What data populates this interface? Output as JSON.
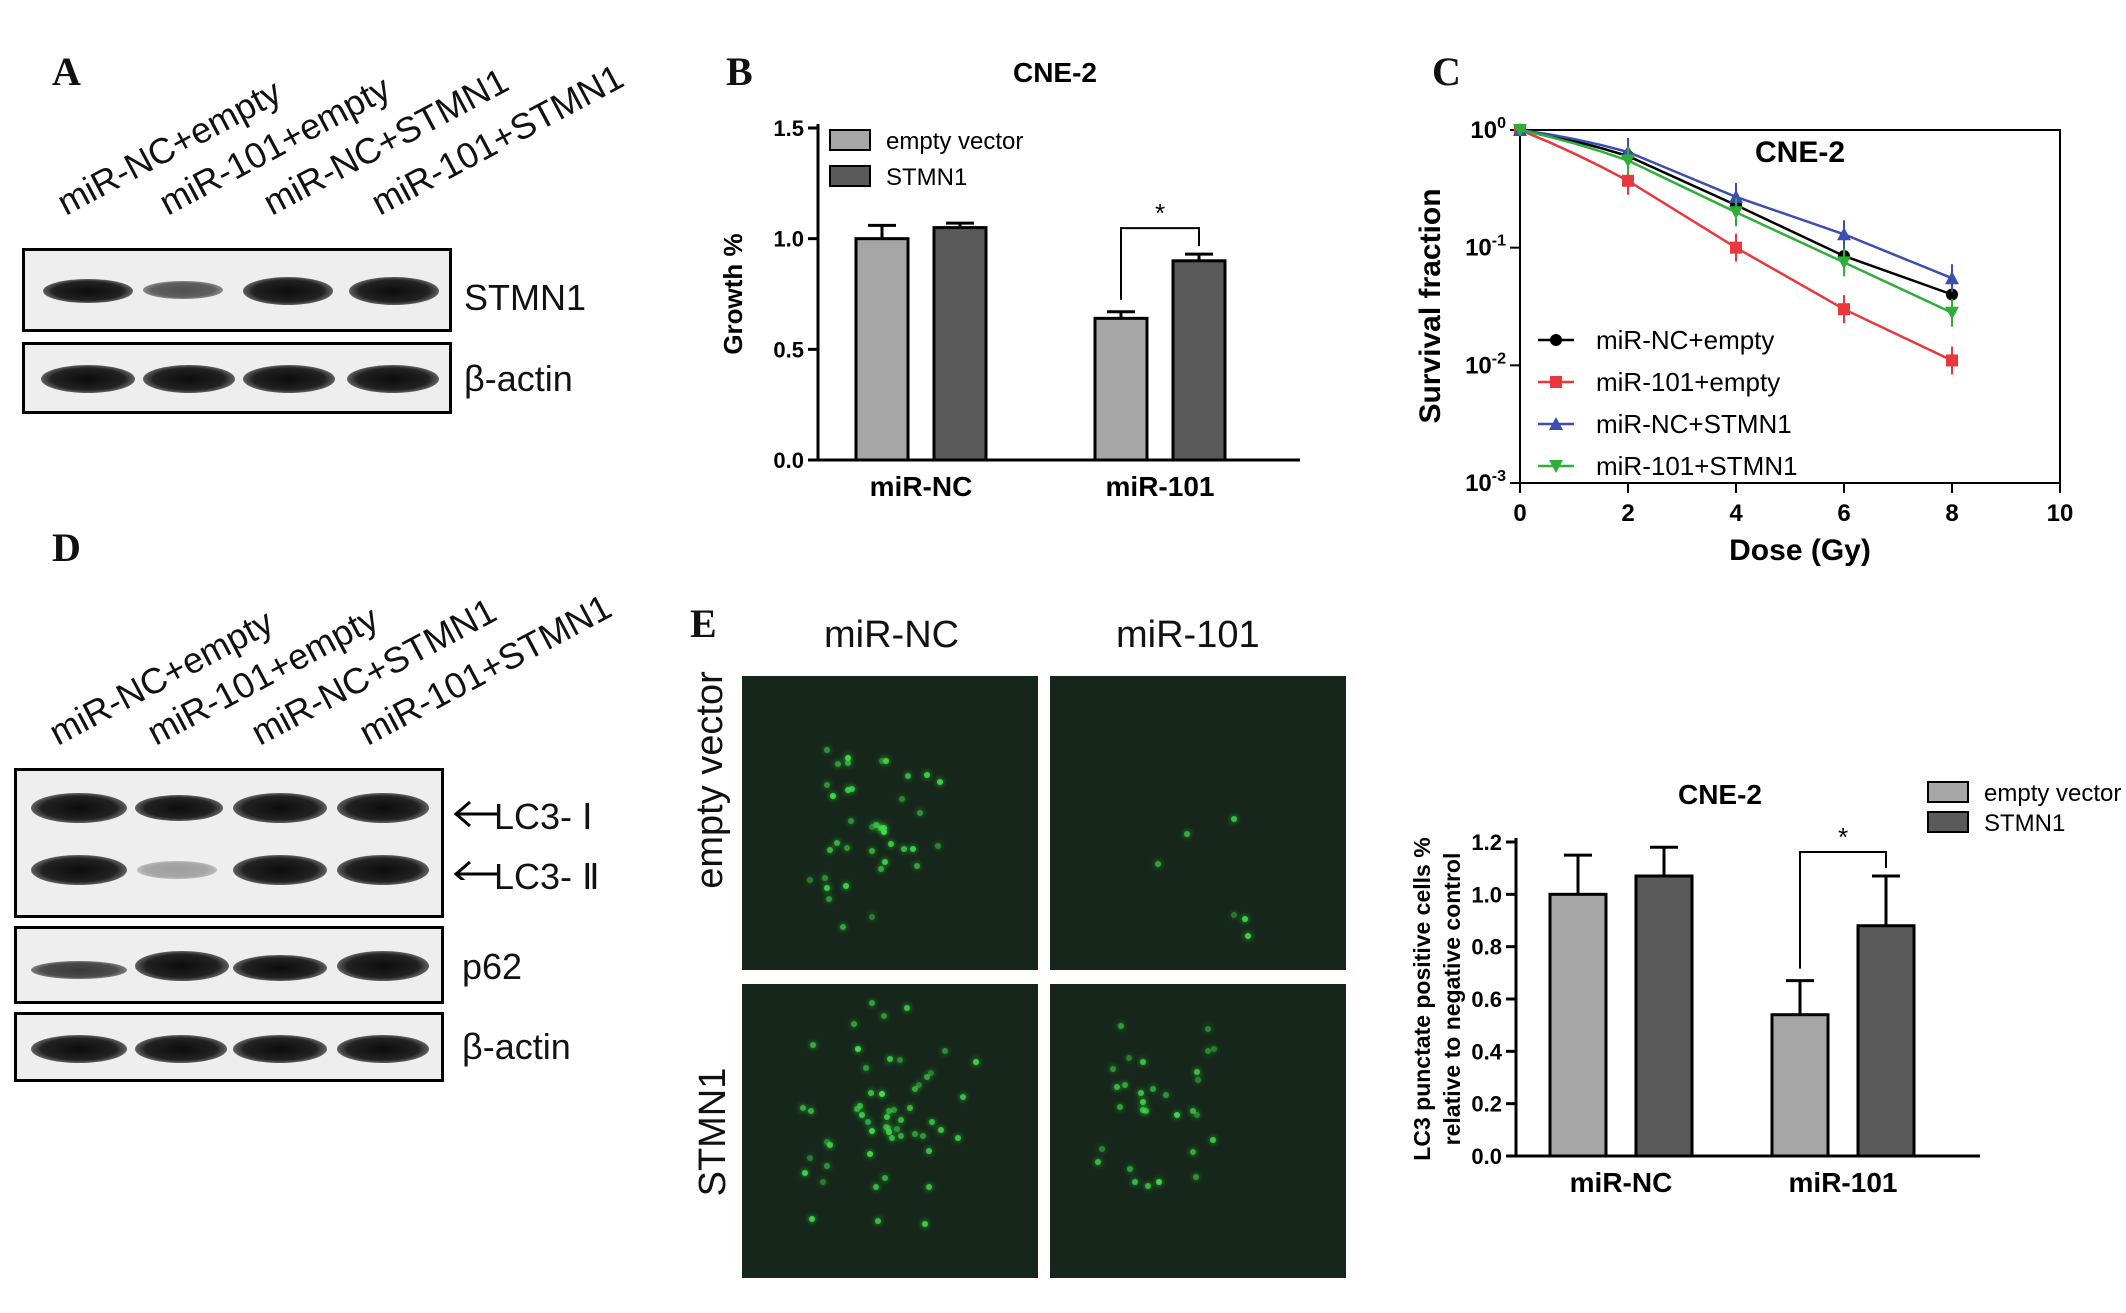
{
  "panelA": {
    "letter": "A",
    "lanes": [
      "miR-NC+empty",
      "miR-101+empty",
      "miR-NC+STMN1",
      "miR-101+STMN1"
    ],
    "blots": [
      "STMN1",
      "β-actin"
    ]
  },
  "panelD": {
    "letter": "D",
    "lanes": [
      "miR-NC+empty",
      "miR-101+empty",
      "miR-NC+STMN1",
      "miR-101+STMN1"
    ],
    "blots": [
      "LC3- Ⅰ",
      "LC3- Ⅱ",
      "p62",
      "β-actin"
    ]
  },
  "panelE": {
    "letter": "E",
    "col_labels": [
      "miR-NC",
      "miR-101"
    ],
    "row_labels": [
      "empty vector",
      "STMN1"
    ]
  },
  "chart_data": [
    {
      "panel": "B",
      "type": "bar",
      "title": "CNE-2",
      "xlabel": "",
      "ylabel": "Growth %",
      "categories": [
        "miR-NC",
        "miR-101"
      ],
      "series": [
        {
          "name": "empty vector",
          "values": [
            1.0,
            0.64
          ],
          "errors": [
            0.06,
            0.03
          ],
          "color": "#a6a6a6"
        },
        {
          "name": "STMN1",
          "values": [
            1.05,
            0.9
          ],
          "errors": [
            0.02,
            0.03
          ],
          "color": "#5a5a5a"
        }
      ],
      "ylim": [
        0,
        1.5
      ],
      "yticks": [
        "0.0",
        "0.5",
        "1.0",
        "1.5"
      ],
      "significance": {
        "category": "miR-101",
        "label": "*"
      },
      "legend": "top-left"
    },
    {
      "panel": "C",
      "type": "line",
      "title": "CNE-2",
      "xlabel": "Dose (Gy)",
      "ylabel": "Survival fraction",
      "yscale": "log",
      "xlim": [
        0,
        10
      ],
      "ylim": [
        0.001,
        1
      ],
      "xticks": [
        "0",
        "2",
        "4",
        "6",
        "8",
        "10"
      ],
      "yticks": [
        {
          "base": "10",
          "exp": "0"
        },
        {
          "base": "10",
          "exp": "-1"
        },
        {
          "base": "10",
          "exp": "-2"
        },
        {
          "base": "10",
          "exp": "-3"
        }
      ],
      "x": [
        0,
        2,
        4,
        6,
        8
      ],
      "series": [
        {
          "name": "miR-NC+empty",
          "marker": "circle",
          "color": "#000000",
          "values": [
            1.0,
            0.6,
            0.23,
            0.085,
            0.04
          ]
        },
        {
          "name": "miR-101+empty",
          "marker": "square",
          "color": "#e8383d",
          "values": [
            1.0,
            0.37,
            0.1,
            0.03,
            0.011
          ]
        },
        {
          "name": "miR-NC+STMN1",
          "marker": "triangle-up",
          "color": "#3a4fb0",
          "values": [
            1.0,
            0.65,
            0.27,
            0.13,
            0.055
          ]
        },
        {
          "name": "miR-101+STMN1",
          "marker": "triangle-down",
          "color": "#2fae3a",
          "values": [
            1.0,
            0.55,
            0.2,
            0.075,
            0.028
          ]
        }
      ],
      "legend": "bottom-left"
    },
    {
      "panel": "E",
      "type": "bar",
      "title": "CNE-2",
      "xlabel": "",
      "ylabel": [
        "LC3 punctate positive cells %",
        "relative to negative control"
      ],
      "categories": [
        "miR-NC",
        "miR-101"
      ],
      "series": [
        {
          "name": "empty vector",
          "values": [
            1.0,
            0.54
          ],
          "errors": [
            0.15,
            0.13
          ],
          "color": "#a6a6a6"
        },
        {
          "name": "STMN1",
          "values": [
            1.07,
            0.88
          ],
          "errors": [
            0.11,
            0.19
          ],
          "color": "#5a5a5a"
        }
      ],
      "ylim": [
        0,
        1.2
      ],
      "yticks": [
        "0.0",
        "0.2",
        "0.4",
        "0.6",
        "0.8",
        "1.0",
        "1.2"
      ],
      "significance": {
        "category": "miR-101",
        "label": "*"
      },
      "legend": "top-right"
    }
  ]
}
